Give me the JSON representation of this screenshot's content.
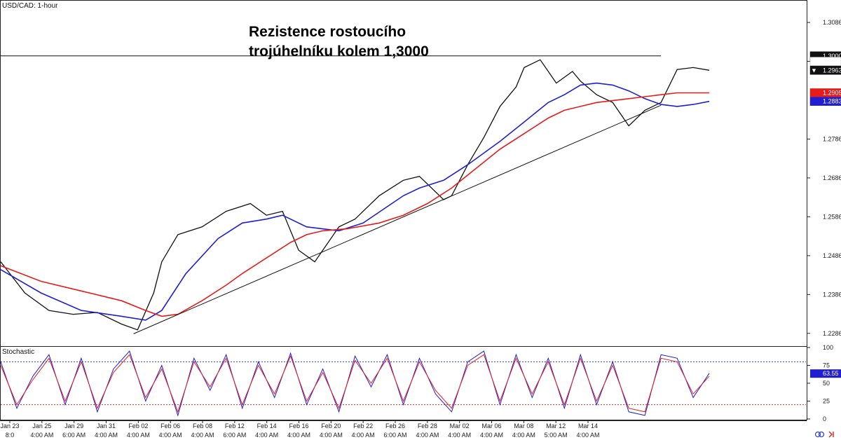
{
  "chart_data": [
    {
      "type": "line",
      "symbol_label": "USD/CAD: 1-hour",
      "title_lines": [
        "Rezistence rostoucího",
        "trojúhelníku kolem 1,3000"
      ],
      "yticks": [
        "1.3086",
        "1.2986",
        "1.2786",
        "1.2686",
        "1.2586",
        "1.2486",
        "1.2386",
        "1.2286"
      ],
      "ylim": [
        1.2255,
        1.3142
      ],
      "x_date_ticks": [
        "Jan 23",
        "Jan 25",
        "Jan 29",
        "Jan 31",
        "Feb 02",
        "Feb 06",
        "Feb 08",
        "Feb 12",
        "Feb 14",
        "Feb 16",
        "Feb 20",
        "Feb 22",
        "Feb 26",
        "Feb 28",
        "Mar 02",
        "Mar 06",
        "Mar 08",
        "Mar 12",
        "Mar 14"
      ],
      "x_time_ticks": [
        "8:0",
        "4:00 AM",
        "6:00 AM",
        "4:00 AM",
        "4:00 AM",
        "4:00 AM",
        "4:00 AM",
        "6:00 AM",
        "4:00 AM",
        "4:00 AM",
        "4:00 AM",
        "4:00 AM",
        "6:00 AM",
        "4:00 AM",
        "4:00 AM",
        "4:00 AM",
        "4:00 AM",
        "5:00 AM",
        "4:00 AM"
      ],
      "series": [
        {
          "color": "#111111",
          "x": [
            0.0,
            0.03,
            0.06,
            0.09,
            0.12,
            0.15,
            0.17,
            0.19,
            0.2,
            0.22,
            0.25,
            0.28,
            0.31,
            0.33,
            0.35,
            0.37,
            0.39,
            0.41,
            0.42,
            0.44,
            0.47,
            0.5,
            0.52,
            0.55,
            0.56,
            0.58,
            0.6,
            0.62,
            0.64,
            0.65,
            0.67,
            0.69,
            0.71,
            0.72,
            0.74,
            0.76,
            0.78,
            0.8,
            0.82,
            0.84,
            0.86,
            0.88
          ],
          "y": [
            1.247,
            1.239,
            1.2345,
            1.2335,
            1.234,
            1.231,
            1.2295,
            1.239,
            1.247,
            1.254,
            1.256,
            1.26,
            1.262,
            1.259,
            1.26,
            1.25,
            1.247,
            1.253,
            1.256,
            1.258,
            1.264,
            1.268,
            1.269,
            1.263,
            1.264,
            1.272,
            1.279,
            1.287,
            1.292,
            1.297,
            1.299,
            1.293,
            1.296,
            1.2935,
            1.29,
            1.288,
            1.282,
            1.286,
            1.288,
            1.2965,
            1.297,
            1.2963
          ]
        },
        {
          "color": "#1f1fd1",
          "x": [
            0.0,
            0.05,
            0.1,
            0.15,
            0.18,
            0.2,
            0.23,
            0.27,
            0.3,
            0.33,
            0.35,
            0.38,
            0.42,
            0.45,
            0.5,
            0.52,
            0.55,
            0.58,
            0.62,
            0.65,
            0.68,
            0.7,
            0.72,
            0.74,
            0.76,
            0.78,
            0.8,
            0.82,
            0.84,
            0.86,
            0.88
          ],
          "y": [
            1.245,
            1.239,
            1.2345,
            1.233,
            1.232,
            1.2345,
            1.244,
            1.253,
            1.257,
            1.258,
            1.259,
            1.256,
            1.255,
            1.257,
            1.264,
            1.266,
            1.268,
            1.272,
            1.278,
            1.283,
            1.288,
            1.29,
            1.2925,
            1.293,
            1.2925,
            1.291,
            1.289,
            1.2875,
            1.287,
            1.2875,
            1.2883
          ]
        },
        {
          "color": "#e51c1c",
          "x": [
            0.0,
            0.05,
            0.1,
            0.15,
            0.18,
            0.2,
            0.22,
            0.25,
            0.28,
            0.3,
            0.33,
            0.36,
            0.38,
            0.4,
            0.43,
            0.47,
            0.5,
            0.53,
            0.56,
            0.59,
            0.62,
            0.65,
            0.68,
            0.7,
            0.72,
            0.74,
            0.76,
            0.78,
            0.8,
            0.82,
            0.84,
            0.86,
            0.88
          ],
          "y": [
            1.246,
            1.242,
            1.2395,
            1.237,
            1.2345,
            1.233,
            1.2335,
            1.237,
            1.241,
            1.244,
            1.248,
            1.252,
            1.254,
            1.255,
            1.2555,
            1.257,
            1.259,
            1.262,
            1.266,
            1.271,
            1.276,
            1.28,
            1.284,
            1.286,
            1.287,
            1.288,
            1.2885,
            1.289,
            1.2895,
            1.29,
            1.2905,
            1.2905,
            1.2905
          ]
        }
      ],
      "support_line": {
        "x": [
          0.165,
          0.82
        ],
        "y": [
          1.2285,
          1.2873
        ]
      },
      "resistance_line": {
        "x": [
          0.0,
          0.82
        ],
        "y": [
          1.3,
          1.3
        ]
      },
      "price_badges": [
        {
          "text": "1.3000",
          "value": 1.3,
          "color": "#111111"
        },
        {
          "text": "1.2986",
          "value": 1.2986,
          "color": "#ffffff",
          "text_color": "#222222"
        },
        {
          "text": "1.2963",
          "value": 1.2963,
          "color": "#111111",
          "marker": "▼"
        },
        {
          "text": "1.2905",
          "value": 1.2905,
          "color": "#e51c1c"
        },
        {
          "text": "1.2883",
          "value": 1.2883,
          "color": "#1f1fd1"
        }
      ]
    },
    {
      "type": "line",
      "indicator_label": "Stochastic",
      "yticks": [
        "100",
        "75",
        "50",
        "25",
        "0"
      ],
      "ylim": [
        0,
        100
      ],
      "overbought": 80,
      "oversold": 20,
      "current_value_badge": {
        "text": "63.55",
        "value": 63.55,
        "color": "#1f1fd1"
      },
      "series": [
        {
          "color": "#1f1fd1",
          "x": [
            0.0,
            0.02,
            0.04,
            0.06,
            0.08,
            0.1,
            0.12,
            0.14,
            0.16,
            0.18,
            0.2,
            0.22,
            0.24,
            0.26,
            0.28,
            0.3,
            0.32,
            0.34,
            0.36,
            0.38,
            0.4,
            0.42,
            0.44,
            0.46,
            0.48,
            0.5,
            0.52,
            0.54,
            0.56,
            0.58,
            0.6,
            0.62,
            0.64,
            0.66,
            0.68,
            0.7,
            0.72,
            0.74,
            0.76,
            0.78,
            0.8,
            0.82,
            0.84,
            0.86,
            0.88
          ],
          "y": [
            80,
            15,
            60,
            90,
            20,
            85,
            10,
            70,
            95,
            25,
            75,
            5,
            85,
            40,
            90,
            15,
            80,
            30,
            92,
            20,
            70,
            10,
            88,
            45,
            90,
            20,
            85,
            35,
            10,
            80,
            95,
            20,
            90,
            30,
            85,
            15,
            90,
            20,
            80,
            10,
            5,
            90,
            85,
            30,
            64
          ]
        },
        {
          "color": "#e51c1c",
          "x": [
            0.0,
            0.02,
            0.04,
            0.06,
            0.08,
            0.1,
            0.12,
            0.14,
            0.16,
            0.18,
            0.2,
            0.22,
            0.24,
            0.26,
            0.28,
            0.3,
            0.32,
            0.34,
            0.36,
            0.38,
            0.4,
            0.42,
            0.44,
            0.46,
            0.48,
            0.5,
            0.52,
            0.54,
            0.56,
            0.58,
            0.6,
            0.62,
            0.64,
            0.66,
            0.68,
            0.7,
            0.72,
            0.74,
            0.76,
            0.78,
            0.8,
            0.82,
            0.84,
            0.86,
            0.88
          ],
          "y": [
            75,
            20,
            55,
            85,
            25,
            80,
            15,
            65,
            90,
            30,
            70,
            10,
            80,
            45,
            85,
            20,
            75,
            35,
            88,
            25,
            65,
            15,
            82,
            50,
            85,
            25,
            80,
            40,
            15,
            75,
            90,
            25,
            85,
            35,
            80,
            20,
            85,
            25,
            75,
            15,
            10,
            85,
            80,
            35,
            60
          ]
        }
      ]
    }
  ]
}
